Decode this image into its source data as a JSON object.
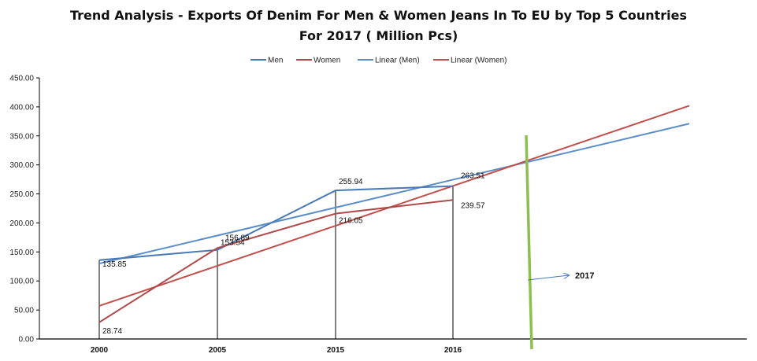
{
  "chart_data": {
    "type": "line",
    "title": "Trend Analysis - Exports Of Denim For Men & Women Jeans In To EU by Top 5 Countries",
    "subtitle": "For 2017  ( Million Pcs)",
    "categories": [
      "2000",
      "2005",
      "2015",
      "2016"
    ],
    "series": [
      {
        "name": "Men",
        "values": [
          135.85,
          153.54,
          255.94,
          263.51
        ],
        "labels": [
          "135.85",
          "153.54",
          "255.94",
          "263.51"
        ],
        "color": "#4a7ab5"
      },
      {
        "name": "Women",
        "values": [
          28.74,
          156.89,
          216.05,
          239.57
        ],
        "labels": [
          "28.74",
          "156.89",
          "216.05",
          "239.57"
        ],
        "color": "#b04a4a"
      }
    ],
    "trendlines": [
      {
        "name": "Linear (Men)",
        "start": 130,
        "end": 371,
        "color": "#5b8dc8"
      },
      {
        "name": "Linear (Women)",
        "start": 57,
        "end": 402,
        "color": "#c0504d"
      }
    ],
    "yticks": [
      "0.00",
      "50.00",
      "100.00",
      "150.00",
      "200.00",
      "250.00",
      "300.00",
      "350.00",
      "400.00",
      "450.00"
    ],
    "ylim": [
      0,
      450
    ],
    "grid": false,
    "legend_position": "top",
    "annotation": {
      "text": "2017",
      "marker_color": "#8cbf4e",
      "arrow_color": "#4a7ab5"
    }
  }
}
